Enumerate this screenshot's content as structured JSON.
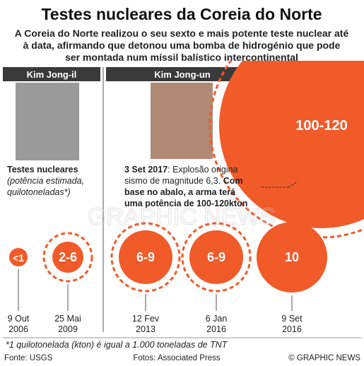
{
  "header": {
    "title": "Testes nucleares da Coreia do Norte",
    "subtitle": [
      "A Coreia do Norte realizou o seu sexto e mais potente teste nuclear até",
      "à data, afirmando que detonou uma bomba de hidrogénio que pode",
      "ser montada num míssil balístico intercontinental"
    ]
  },
  "sections": [
    "Kim Jong-il",
    "Kim Jong-un"
  ],
  "legend": {
    "title": "Testes nucleares",
    "lines": [
      "(potência estimada,",
      "quilotoneladas*)"
    ]
  },
  "annotation": {
    "date": "3 Set 2017",
    "lines": [
      ": Explosão origina",
      "sismo de magnitude 6,3.",
      "Com",
      "base no abalo, a arma terá",
      "uma potência de 100-120kton"
    ]
  },
  "big_test": "100-120",
  "tests": [
    {
      "label": "<1",
      "day": "9 Out",
      "year": "2006"
    },
    {
      "label": "2-6",
      "day": "25 Mai",
      "year": "2009"
    },
    {
      "label": "6-9",
      "day": "12 Fev",
      "year": "2013"
    },
    {
      "label": "6-9",
      "day": "6 Jan",
      "year": "2016"
    },
    {
      "label": "10",
      "day": "9 Set",
      "year": "2016"
    }
  ],
  "watermark": "GRAPHIC NEWS",
  "footnote": "*1 quilotonelada (kton) é igual a 1.000 toneladas de TNT",
  "footer": {
    "source": "Fonte: USGS",
    "photos": "Fotos: Associated Press",
    "credit": "© GRAPHIC NEWS"
  }
}
